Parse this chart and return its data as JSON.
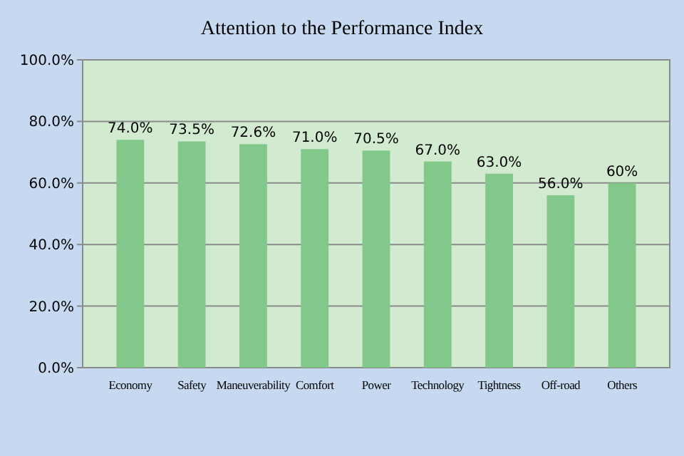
{
  "chart_data": {
    "type": "bar",
    "title": "Attention to the Performance Index",
    "categories": [
      "Economy",
      "Safety",
      "Maneuverability",
      "Comfort",
      "Power",
      "Technology",
      "Tightness",
      "Off-road",
      "Others"
    ],
    "values": [
      74.0,
      73.5,
      72.6,
      71.0,
      70.5,
      67.0,
      63.0,
      56.0,
      60
    ],
    "value_labels": [
      "74.0%",
      "73.5%",
      "72.6%",
      "71.0%",
      "70.5%",
      "67.0%",
      "63.0%",
      "56.0%",
      "60%"
    ],
    "color": "#82c88a",
    "ylim": [
      0,
      100
    ],
    "yticks": [
      {
        "value": 0,
        "label": "0.0%"
      },
      {
        "value": 20,
        "label": "20.0%"
      },
      {
        "value": 40,
        "label": "40.0%"
      },
      {
        "value": 60,
        "label": "60.0%"
      },
      {
        "value": 80,
        "label": "80.0%"
      },
      {
        "value": 100,
        "label": "100.0%"
      }
    ],
    "grid": "y"
  }
}
